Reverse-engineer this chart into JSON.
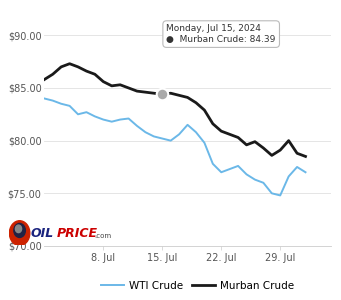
{
  "ylim": [
    70.0,
    90.5
  ],
  "yticks": [
    70.0,
    75.0,
    80.0,
    85.0,
    90.0
  ],
  "ytick_labels": [
    "$70.00",
    "$75.00",
    "$80.00",
    "$85.00",
    "$90.00"
  ],
  "xtick_labels": [
    "8. Jul",
    "15. Jul",
    "22. Jul",
    "29. Jul"
  ],
  "xtick_positions": [
    7,
    14,
    21,
    28
  ],
  "xlim": [
    0,
    34
  ],
  "wti_x": [
    0,
    1,
    2,
    3,
    4,
    5,
    6,
    7,
    8,
    9,
    10,
    11,
    12,
    13,
    14,
    15,
    16,
    17,
    18,
    19,
    20,
    21,
    22,
    23,
    24,
    25,
    26,
    27,
    28,
    29,
    30,
    31
  ],
  "wti_y": [
    84.0,
    83.8,
    83.5,
    83.3,
    82.5,
    82.7,
    82.3,
    82.0,
    81.8,
    82.0,
    82.1,
    81.4,
    80.8,
    80.4,
    80.2,
    80.0,
    80.6,
    81.5,
    80.8,
    79.8,
    77.8,
    77.0,
    77.3,
    77.6,
    76.8,
    76.3,
    76.0,
    75.0,
    74.8,
    76.6,
    77.5,
    77.0
  ],
  "murban_x": [
    0,
    1,
    2,
    3,
    4,
    5,
    6,
    7,
    8,
    9,
    10,
    11,
    12,
    13,
    14,
    15,
    16,
    17,
    18,
    19,
    20,
    21,
    22,
    23,
    24,
    25,
    26,
    27,
    28,
    29,
    30,
    31
  ],
  "murban_y": [
    85.8,
    86.3,
    87.0,
    87.3,
    87.0,
    86.6,
    86.3,
    85.6,
    85.2,
    85.3,
    85.0,
    84.7,
    84.6,
    84.5,
    84.39,
    84.5,
    84.3,
    84.1,
    83.6,
    82.9,
    81.6,
    80.9,
    80.6,
    80.3,
    79.6,
    79.9,
    79.3,
    78.6,
    79.1,
    80.0,
    78.8,
    78.5
  ],
  "wti_color": "#6bb8e8",
  "murban_color": "#1a1a1a",
  "tooltip_x_idx": 14,
  "tooltip_date": "Monday, Jul 15, 2024",
  "tooltip_label": "●  Murban Crude: 84.39",
  "bg_color": "#ffffff",
  "grid_color": "#e0e0e0",
  "legend_wti": "WTI Crude",
  "legend_murban": "Murban Crude"
}
